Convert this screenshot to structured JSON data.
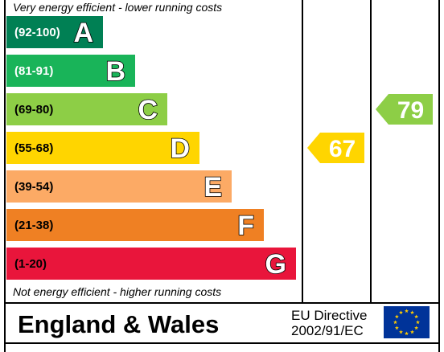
{
  "chart_data": {
    "type": "bar",
    "top_note": "Very energy efficient - lower running costs",
    "bottom_note": "Not energy efficient - higher running costs",
    "bands": [
      {
        "letter": "A",
        "range": "(92-100)",
        "min": 92,
        "max": 100,
        "color": "#008054",
        "range_color": "#ffffff"
      },
      {
        "letter": "B",
        "range": "(81-91)",
        "min": 81,
        "max": 91,
        "color": "#19b459",
        "range_color": "#ffffff"
      },
      {
        "letter": "C",
        "range": "(69-80)",
        "min": 69,
        "max": 80,
        "color": "#8dce46",
        "range_color": "#000000"
      },
      {
        "letter": "D",
        "range": "(55-68)",
        "min": 55,
        "max": 68,
        "color": "#ffd500",
        "range_color": "#000000"
      },
      {
        "letter": "E",
        "range": "(39-54)",
        "min": 39,
        "max": 54,
        "color": "#fcaa65",
        "range_color": "#000000"
      },
      {
        "letter": "F",
        "range": "(21-38)",
        "min": 21,
        "max": 38,
        "color": "#ef8023",
        "range_color": "#000000"
      },
      {
        "letter": "G",
        "range": "(1-20)",
        "min": 1,
        "max": 20,
        "color": "#e9153b",
        "range_color": "#000000"
      }
    ],
    "current": {
      "value": 67,
      "color": "#ffd500"
    },
    "potential": {
      "value": 79,
      "color": "#8dce46"
    }
  },
  "footer": {
    "title": "England & Wales",
    "directive_line1": "EU Directive",
    "directive_line2": "2002/91/EC",
    "flag_color": "#003399",
    "star_color": "#ffcc00"
  }
}
